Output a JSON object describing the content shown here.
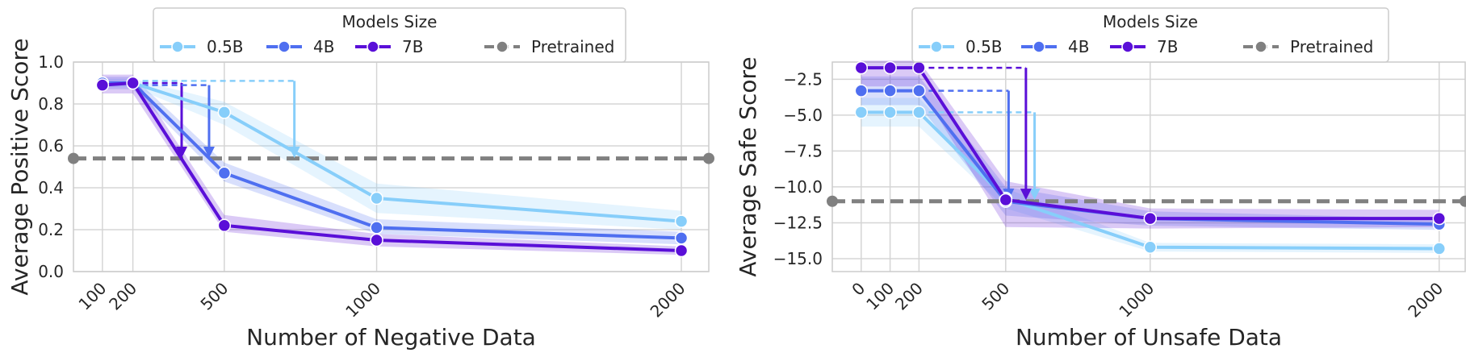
{
  "chart_data": [
    {
      "type": "line",
      "title": "",
      "xlabel": "Number of Negative Data",
      "ylabel": "Average Positive Score",
      "xlim": [
        5,
        2090
      ],
      "ylim": [
        0.0,
        1.0
      ],
      "yticks": [
        0.0,
        0.2,
        0.4,
        0.6,
        0.8,
        1.0
      ],
      "ytick_labels": [
        "0.0",
        "0.2",
        "0.4",
        "0.6",
        "0.8",
        "1.0"
      ],
      "xticks": [
        100,
        200,
        500,
        1000,
        2000
      ],
      "xtick_labels": [
        "100",
        "200",
        "500",
        "1000",
        "2000"
      ],
      "grid": true,
      "legend": {
        "title": "Models Size",
        "placement": "top-center",
        "entries": [
          "0.5B",
          "4B",
          "7B",
          "Pretrained"
        ]
      },
      "series": [
        {
          "name": "0.5B",
          "color": "#87cefa",
          "x": [
            100,
            200,
            500,
            1000,
            2000
          ],
          "y": [
            0.9,
            0.9,
            0.76,
            0.35,
            0.24
          ],
          "band": [
            [
              0.88,
              0.92
            ],
            [
              0.88,
              0.92
            ],
            [
              0.7,
              0.81
            ],
            [
              0.28,
              0.42
            ],
            [
              0.2,
              0.29
            ]
          ]
        },
        {
          "name": "4B",
          "color": "#4f6ff0",
          "x": [
            100,
            200,
            500,
            1000,
            2000
          ],
          "y": [
            0.9,
            0.9,
            0.47,
            0.21,
            0.16
          ],
          "band": [
            [
              0.87,
              0.93
            ],
            [
              0.87,
              0.93
            ],
            [
              0.43,
              0.52
            ],
            [
              0.18,
              0.25
            ],
            [
              0.13,
              0.19
            ]
          ]
        },
        {
          "name": "7B",
          "color": "#5a0fd8",
          "x": [
            100,
            200,
            500,
            1000,
            2000
          ],
          "y": [
            0.89,
            0.9,
            0.22,
            0.15,
            0.1
          ],
          "band": [
            [
              0.85,
              0.94
            ],
            [
              0.85,
              0.94
            ],
            [
              0.19,
              0.27
            ],
            [
              0.12,
              0.18
            ],
            [
              0.08,
              0.12
            ]
          ]
        }
      ],
      "baseline": {
        "name": "Pretrained",
        "color": "#808080",
        "y": 0.54
      },
      "annotations": [
        {
          "series": "7B",
          "from_x": 200,
          "y_start": 0.9,
          "drop_x": 360,
          "y_end": 0.55
        },
        {
          "series": "4B",
          "from_x": 200,
          "y_start": 0.89,
          "drop_x": 450,
          "y_end": 0.55
        },
        {
          "series": "0.5B",
          "from_x": 200,
          "y_start": 0.91,
          "drop_x": 730,
          "y_end": 0.55
        }
      ]
    },
    {
      "type": "line",
      "title": "",
      "xlabel": "Number of Unsafe Data",
      "ylabel": "Average Safe Score",
      "xlim": [
        -100,
        2090
      ],
      "ylim": [
        -15.9,
        -1.3
      ],
      "yticks": [
        -15.0,
        -12.5,
        -10.0,
        -7.5,
        -5.0,
        -2.5
      ],
      "ytick_labels": [
        "−15.0",
        "−12.5",
        "−10.0",
        "−7.5",
        "−5.0",
        "−2.5"
      ],
      "xticks": [
        0,
        100,
        200,
        500,
        1000,
        2000
      ],
      "xtick_labels": [
        "0",
        "100",
        "200",
        "500",
        "1000",
        "2000"
      ],
      "grid": true,
      "legend": {
        "title": "Models Size",
        "placement": "top-center",
        "entries": [
          "0.5B",
          "4B",
          "7B",
          "Pretrained"
        ]
      },
      "series": [
        {
          "name": "0.5B",
          "color": "#87cefa",
          "x": [
            0,
            100,
            200,
            500,
            1000,
            2000
          ],
          "y": [
            -4.8,
            -4.8,
            -4.8,
            -10.8,
            -14.2,
            -14.3
          ],
          "band": [
            [
              -5.8,
              -3.8
            ],
            [
              -5.8,
              -3.8
            ],
            [
              -5.8,
              -3.8
            ],
            [
              -11.5,
              -10.1
            ],
            [
              -14.5,
              -13.9
            ],
            [
              -14.6,
              -14.0
            ]
          ]
        },
        {
          "name": "4B",
          "color": "#4f6ff0",
          "x": [
            0,
            100,
            200,
            500,
            1000,
            2000
          ],
          "y": [
            -3.3,
            -3.3,
            -3.3,
            -11.0,
            -12.2,
            -12.6
          ],
          "band": [
            [
              -4.3,
              -2.3
            ],
            [
              -4.3,
              -2.3
            ],
            [
              -4.3,
              -2.3
            ],
            [
              -12.0,
              -10.0
            ],
            [
              -12.7,
              -11.7
            ],
            [
              -13.0,
              -12.2
            ]
          ]
        },
        {
          "name": "7B",
          "color": "#5a0fd8",
          "x": [
            0,
            100,
            200,
            500,
            1000,
            2000
          ],
          "y": [
            -1.7,
            -1.7,
            -1.7,
            -10.9,
            -12.2,
            -12.2
          ],
          "band": [
            [
              -3.0,
              -1.2
            ],
            [
              -3.0,
              -1.2
            ],
            [
              -3.0,
              -1.2
            ],
            [
              -12.8,
              -9.6
            ],
            [
              -12.9,
              -11.5
            ],
            [
              -12.8,
              -11.6
            ]
          ]
        }
      ],
      "baseline": {
        "name": "Pretrained",
        "color": "#808080",
        "y": -11.0
      },
      "annotations": [
        {
          "series": "0.5B",
          "from_x": 200,
          "y_start": -4.8,
          "drop_x": 600,
          "y_end": -10.8
        },
        {
          "series": "4B",
          "from_x": 200,
          "y_start": -3.3,
          "drop_x": 510,
          "y_end": -10.8
        },
        {
          "series": "7B",
          "from_x": 200,
          "y_start": -1.7,
          "drop_x": 570,
          "y_end": -10.8
        }
      ]
    }
  ]
}
